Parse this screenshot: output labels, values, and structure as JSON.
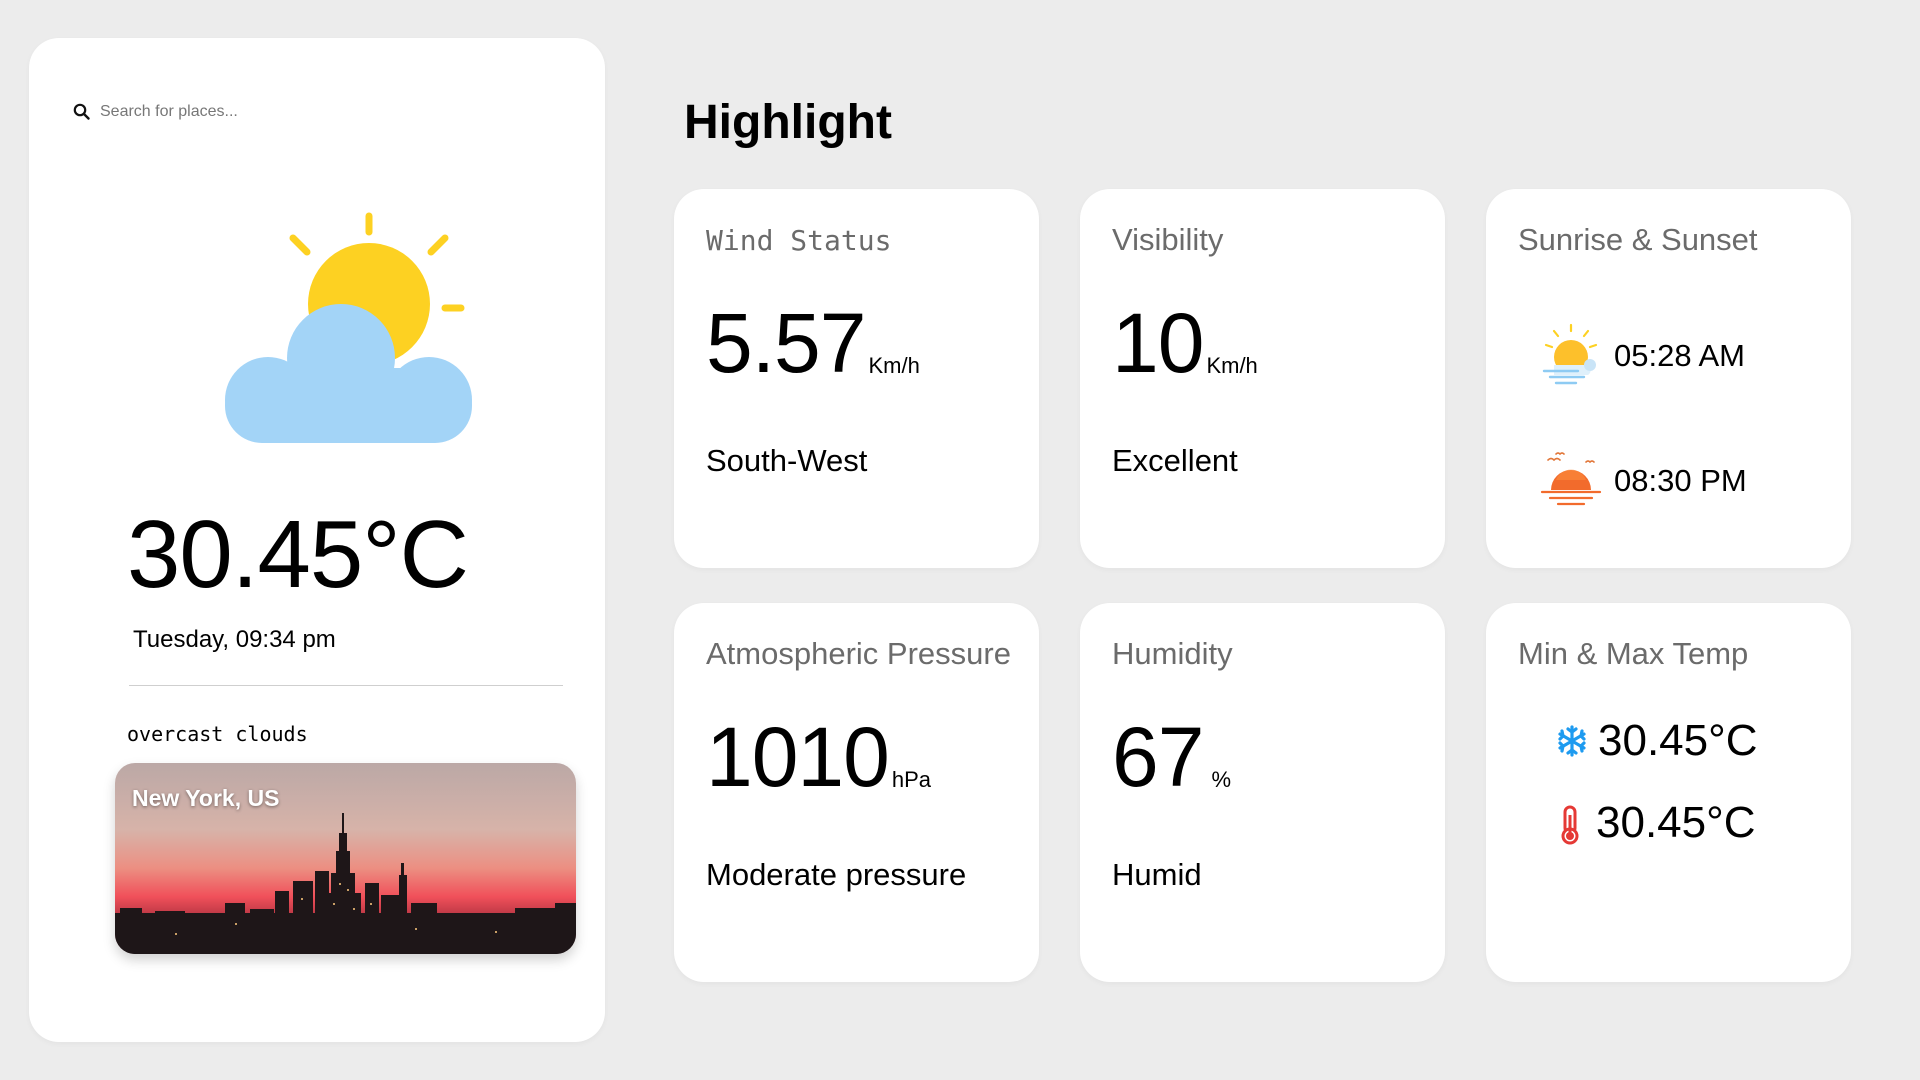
{
  "search": {
    "placeholder": "Search for places..."
  },
  "current": {
    "icon": "partly-cloudy-icon",
    "temperature": "30.45°C",
    "datetime": "Tuesday, 09:34 pm",
    "condition": "overcast clouds",
    "city": "New York, US"
  },
  "highlight": {
    "title": "Highlight",
    "wind": {
      "title": "Wind Status",
      "value": "5.57",
      "unit": "Km/h",
      "direction": "South-West"
    },
    "visibility": {
      "title": "Visibility",
      "value": "10",
      "unit": "Km/h",
      "status": "Excellent"
    },
    "sun": {
      "title": "Sunrise & Sunset",
      "sunrise": "05:28 AM",
      "sunset": "08:30 PM"
    },
    "pressure": {
      "title": "Atmospheric Pressure",
      "value": "1010",
      "unit": "hPa",
      "status": "Moderate pressure"
    },
    "humidity": {
      "title": "Humidity",
      "value": "67",
      "unit": "%",
      "status": "Humid"
    },
    "minmax": {
      "title": "Min & Max Temp",
      "min": "30.45°C",
      "max": "30.45°C"
    }
  },
  "colors": {
    "sun": "#fdd122",
    "cloud": "#a3d4f7",
    "snowflake": "#1e9bf0",
    "thermometer": "#e53935"
  }
}
